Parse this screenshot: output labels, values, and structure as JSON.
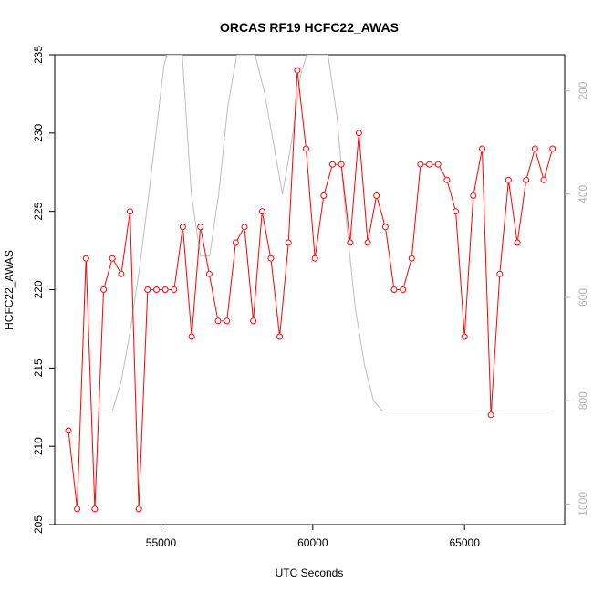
{
  "chart_data": {
    "type": "line",
    "title": "ORCAS RF19 HCFC22_AWAS",
    "xlabel": "UTC Seconds",
    "ylabel": "HCFC22_AWAS",
    "xlim": [
      51500,
      68300
    ],
    "ylim": [
      205,
      235
    ],
    "x_ticks": [
      55000,
      60000,
      65000
    ],
    "y_ticks": [
      205,
      210,
      215,
      220,
      225,
      230,
      235
    ],
    "y2_ticks": [
      200,
      400,
      600,
      800,
      1000
    ],
    "y2_lim_top_to_bottom": [
      130,
      1040
    ],
    "colors": {
      "primary": "#ff0000",
      "secondary": "#bebebe",
      "axis": "#000000",
      "right_axis": "#b3b3b3"
    },
    "grid": false,
    "series": [
      {
        "axis": "left",
        "marker": "open-circle",
        "x": [
          51950,
          52240,
          52530,
          52820,
          53110,
          53400,
          53690,
          53980,
          54270,
          54560,
          54850,
          55140,
          55430,
          55720,
          56010,
          56300,
          56590,
          56880,
          57170,
          57460,
          57750,
          58040,
          58330,
          58620,
          58910,
          59200,
          59490,
          59780,
          60070,
          60360,
          60650,
          60940,
          61230,
          61520,
          61810,
          62100,
          62390,
          62680,
          62970,
          63260,
          63550,
          63840,
          64130,
          64420,
          64710,
          65000,
          65290,
          65580,
          65870,
          66160,
          66450,
          66740,
          67030,
          67320,
          67610,
          67900
        ],
        "values": [
          211,
          206,
          222,
          206,
          220,
          222,
          221,
          225,
          206,
          220,
          220,
          220,
          220,
          224,
          217,
          224,
          221,
          218,
          218,
          223,
          224,
          218,
          225,
          222,
          217,
          223,
          234,
          229,
          222,
          226,
          228,
          228,
          223,
          230,
          223,
          226,
          224,
          220,
          220,
          222,
          228,
          228,
          228,
          227,
          225,
          217,
          226,
          229,
          212,
          221,
          227,
          223,
          227,
          229,
          227,
          229
        ]
      },
      {
        "axis": "right",
        "marker": "none",
        "x": [
          51950,
          52500,
          53050,
          53400,
          53700,
          54000,
          54300,
          54600,
          54900,
          55100,
          55200,
          55700,
          56000,
          56300,
          56600,
          56900,
          57200,
          57500,
          57800,
          58100,
          58400,
          58700,
          59000,
          59300,
          59600,
          59800,
          60100,
          60500,
          60800,
          61100,
          61400,
          61700,
          62000,
          62300,
          63000,
          64000,
          65000,
          66000,
          67000,
          67900
        ],
        "values": [
          820,
          820,
          820,
          820,
          760,
          660,
          540,
          400,
          250,
          150,
          130,
          130,
          400,
          520,
          520,
          400,
          230,
          130,
          130,
          130,
          200,
          300,
          400,
          300,
          170,
          130,
          130,
          130,
          250,
          450,
          620,
          730,
          800,
          820,
          820,
          820,
          820,
          820,
          820,
          820
        ]
      }
    ]
  }
}
